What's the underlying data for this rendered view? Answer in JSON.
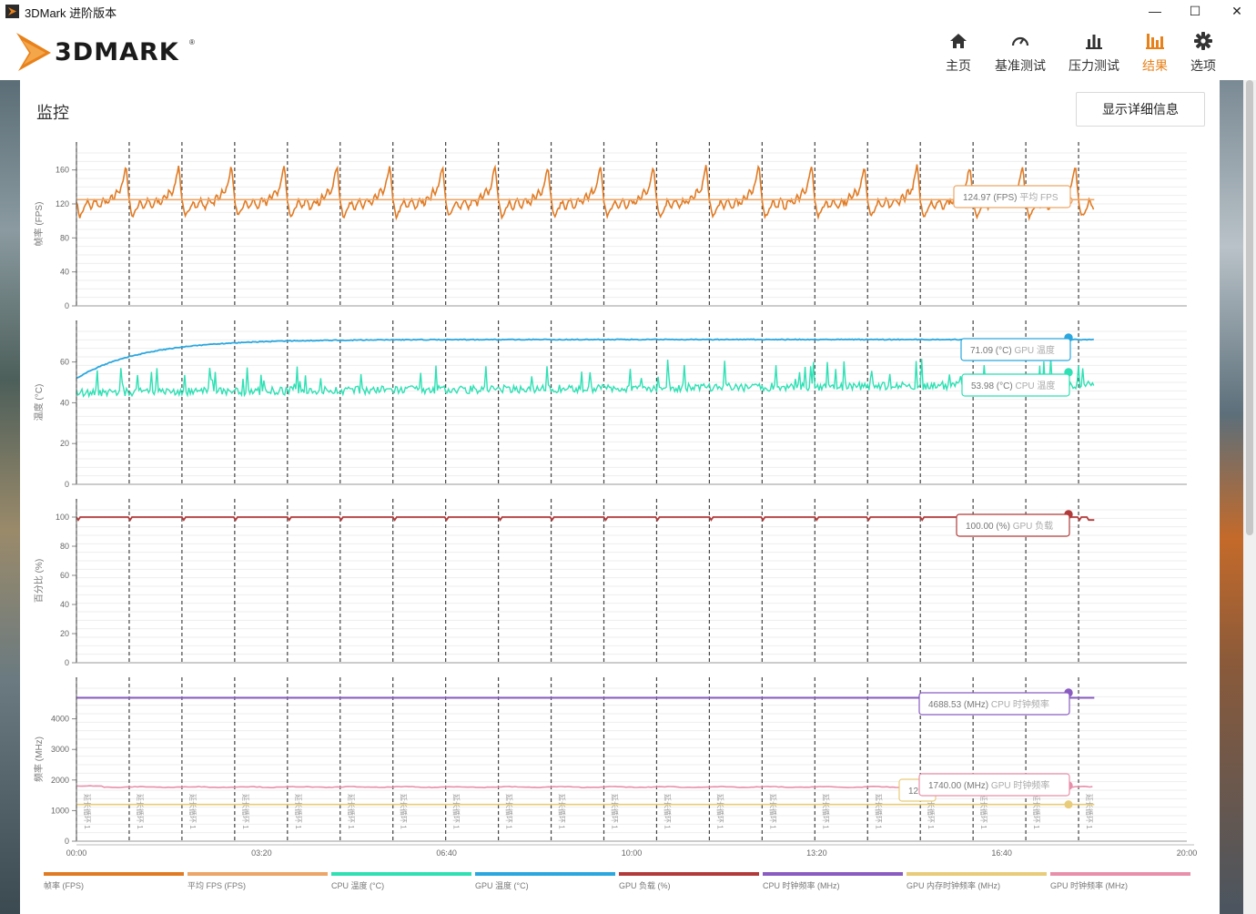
{
  "window": {
    "title": "3DMark 进阶版本",
    "minimize": "—",
    "maximize": "☐",
    "close": "✕"
  },
  "logo": {
    "text": "3DMARK",
    "mark": "®"
  },
  "nav": [
    {
      "label": "主页",
      "icon": "home-icon"
    },
    {
      "label": "基准测试",
      "icon": "gauge-icon"
    },
    {
      "label": "压力测试",
      "icon": "bar-chart-icon"
    },
    {
      "label": "结果",
      "icon": "results-icon",
      "active": true
    },
    {
      "label": "选项",
      "icon": "gear-icon"
    }
  ],
  "page": {
    "title": "监控",
    "details_button": "显示详细信息"
  },
  "colors": {
    "accent": "#e8811a",
    "fps": "#e07b24",
    "avg_fps": "#eca667",
    "cpu_temp": "#2fe0b4",
    "gpu_temp": "#2aa7de",
    "gpu_load": "#b23a3a",
    "cpu_clock": "#8a5cc2",
    "gpu_mem_clock": "#e8cc7a",
    "gpu_clock": "#e890ab"
  },
  "chart_data": {
    "type": "line",
    "x_axis": {
      "unit": "mm:ss",
      "range": [
        "00:00",
        "20:00"
      ],
      "ticks": [
        "00:00",
        "03:20",
        "06:40",
        "10:00",
        "13:20",
        "16:40",
        "20:00"
      ]
    },
    "loop_markers": {
      "times": [
        "00:00",
        "00:57",
        "01:54",
        "02:51",
        "03:48",
        "04:45",
        "05:42",
        "06:39",
        "07:36",
        "08:33",
        "09:30",
        "10:27",
        "11:24",
        "12:21",
        "13:18",
        "14:15",
        "15:12",
        "16:09",
        "17:06",
        "18:03"
      ],
      "label": "延长循环 1"
    },
    "panels": [
      {
        "ylabel": "帧率 (FPS)",
        "ylim": [
          0,
          180
        ],
        "yticks": [
          "0",
          "40",
          "80",
          "120",
          "160"
        ],
        "series": [
          {
            "name": "帧率 (FPS)",
            "pattern": "each loop: ~120 dips to ~105, climbs to ~140 and spikes to ~168 before the next loop marker"
          },
          {
            "name": "平均 FPS (FPS)",
            "constant": 124.97
          }
        ],
        "tooltips": [
          {
            "value": "124.97 (FPS)",
            "label": "平均 FPS"
          }
        ]
      },
      {
        "ylabel": "温度 (°C)",
        "ylim": [
          0,
          75
        ],
        "yticks": [
          "0",
          "20",
          "40",
          "60"
        ],
        "series": [
          {
            "name": "GPU 温度 (°C)",
            "start": 52,
            "plateau": 71,
            "end": 71
          },
          {
            "name": "CPU 温度 (°C)",
            "start": 46,
            "range": [
              42,
              62
            ],
            "end": 50
          }
        ],
        "tooltips": [
          {
            "value": "71.09 (°C)",
            "label": "GPU 温度"
          },
          {
            "value": "53.98 (°C)",
            "label": "CPU 温度"
          }
        ]
      },
      {
        "ylabel": "百分比 (%)",
        "ylim": [
          0,
          105
        ],
        "yticks": [
          "0",
          "20",
          "40",
          "60",
          "80",
          "100"
        ],
        "series": [
          {
            "name": "GPU 负载 (%)",
            "value": 100,
            "dips_to": 98
          }
        ],
        "tooltips": [
          {
            "value": "100.00 (%)",
            "label": "GPU 负载"
          }
        ]
      },
      {
        "ylabel": "频率 (MHz)",
        "ylim": [
          0,
          5000
        ],
        "yticks": [
          "0",
          "1000",
          "2000",
          "3000",
          "4000"
        ],
        "series": [
          {
            "name": "CPU 时钟频率 (MHz)",
            "value": 4688.53
          },
          {
            "name": "GPU 时钟频率 (MHz)",
            "value": 1740,
            "range": [
              1730,
              1800
            ]
          },
          {
            "name": "GPU 内存时钟频率 (MHz)",
            "value": 1200
          }
        ],
        "tooltips": [
          {
            "value": "4688.53 (MHz)",
            "label": "CPU 时钟频率"
          },
          {
            "value": "1740.00 (MHz)",
            "label": "GPU 时钟频率"
          },
          {
            "value": "12",
            "label": ""
          }
        ]
      }
    ],
    "legend": [
      "帧率 (FPS)",
      "平均 FPS (FPS)",
      "CPU 温度 (°C)",
      "GPU 温度 (°C)",
      "GPU 负载 (%)",
      "CPU 时钟频率 (MHz)",
      "GPU 内存时钟频率 (MHz)",
      "GPU 时钟频率 (MHz)"
    ]
  }
}
